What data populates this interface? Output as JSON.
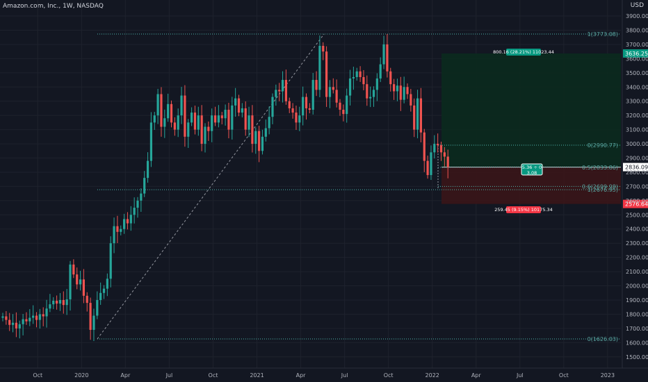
{
  "header": {
    "symbol_line": "Amazon.com, Inc., 1W, NASDAQ",
    "currency": "USD"
  },
  "colors": {
    "background": "#131722",
    "up": "#26a69a",
    "down": "#ef5350",
    "fib": "#4db6ac",
    "target_fill": "#0b2a1e",
    "stop_fill": "#3a1518",
    "target_label": "#089981",
    "stop_label": "#f23645"
  },
  "price_axis": {
    "ticks": [
      "3900.00",
      "3800.00",
      "3700.00",
      "3600.00",
      "3500.00",
      "3400.00",
      "3300.00",
      "3200.00",
      "3100.00",
      "3000.00",
      "2900.00",
      "2800.00",
      "2700.00",
      "2600.00",
      "2500.00",
      "2400.00",
      "2300.00",
      "2200.00",
      "2100.00",
      "2000.00",
      "1900.00",
      "1800.00",
      "1700.00",
      "1600.00",
      "1500.00"
    ]
  },
  "time_axis": {
    "labels": [
      "Oct",
      "2020",
      "Apr",
      "Jul",
      "Oct",
      "2021",
      "Apr",
      "Jul",
      "Oct",
      "2022",
      "Apr",
      "Jul",
      "Oct",
      "2023"
    ]
  },
  "fib_labels": {
    "top": "1(3773.08)",
    "zero": "0(2990.77)",
    "half": "0.5(2833.86)",
    "sixtwo": "0.6(2699.98)",
    "one": "1(2676.95)",
    "bottom": "0(1626.03)"
  },
  "position": {
    "target_label": "800.16 (28.21%) 11023.44",
    "stop_label": "259.45 (9.15%) 10175.34",
    "center_label_1": "5.36 ÷ 0",
    "center_label_2": "3.08",
    "target_price": "3636.25",
    "current_price": "2836.09",
    "stop_price": "2576.64"
  },
  "chart_data": {
    "type": "candlestick",
    "title": "Amazon.com, Inc., 1W, NASDAQ",
    "currency": "USD",
    "ylim": [
      1450,
      3980
    ],
    "x_labels": [
      "Oct",
      "2020",
      "Apr",
      "Jul",
      "Oct",
      "2021",
      "Apr",
      "Jul",
      "Oct",
      "2022",
      "Apr",
      "Jul",
      "Oct",
      "2023"
    ],
    "x_label_weeks": [
      5,
      18,
      31,
      44,
      57,
      70,
      83,
      96,
      109,
      122,
      135,
      148,
      161,
      174
    ],
    "closes": [
      1785,
      1760,
      1725,
      1740,
      1700,
      1730,
      1765,
      1750,
      1775,
      1790,
      1760,
      1800,
      1785,
      1840,
      1870,
      1895,
      1875,
      1900,
      1865,
      1905,
      2150,
      2080,
      2010,
      2045,
      1930,
      1880,
      1690,
      1790,
      1900,
      1950,
      1980,
      2050,
      2300,
      2420,
      2380,
      2400,
      2470,
      2440,
      2500,
      2550,
      2600,
      2650,
      2760,
      2880,
      3150,
      3200,
      3350,
      3120,
      3180,
      3280,
      3150,
      3100,
      3200,
      3340,
      3050,
      3150,
      3220,
      3100,
      3200,
      3000,
      3120,
      3090,
      3200,
      3150,
      3200,
      3180,
      3240,
      3100,
      3270,
      3320,
      3220,
      3250,
      3100,
      3200,
      3000,
      3090,
      2950,
      3050,
      3110,
      3190,
      3330,
      3380,
      3370,
      3450,
      3300,
      3250,
      3220,
      3150,
      3200,
      3330,
      3250,
      3240,
      3450,
      3380,
      3690,
      3650,
      3330,
      3400,
      3380,
      3290,
      3240,
      3210,
      3340,
      3460,
      3470,
      3510,
      3470,
      3420,
      3320,
      3330,
      3380,
      3460,
      3560,
      3700,
      3510,
      3420,
      3370,
      3410,
      3310,
      3400,
      3350,
      3270,
      3100,
      3320,
      3080,
      2880,
      2780,
      2940,
      3000,
      2990,
      2940,
      2910,
      2836
    ]
  },
  "price_ticks_values": [
    3900,
    3800,
    3700,
    3600,
    3500,
    3400,
    3300,
    3200,
    3100,
    3000,
    2900,
    2800,
    2700,
    2600,
    2500,
    2400,
    2300,
    2200,
    2100,
    2000,
    1900,
    1800,
    1700,
    1600,
    1500
  ]
}
